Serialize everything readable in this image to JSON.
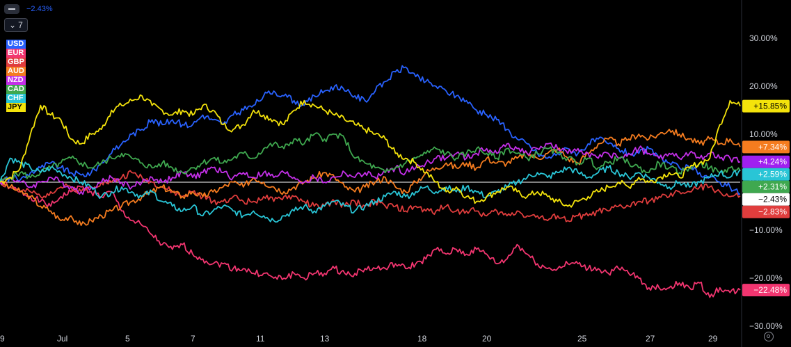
{
  "header": {
    "change_value": "−2.43%",
    "series_count": "7"
  },
  "chart_data": {
    "type": "line",
    "x_tick_labels": [
      "9",
      "Jul",
      "5",
      "7",
      "11",
      "13",
      "18",
      "20",
      "25",
      "27",
      "29"
    ],
    "y_tick_labels": [
      "30.00%",
      "20.00%",
      "10.00%",
      "0.00%",
      "−10.00%",
      "−20.00%",
      "−30.00%"
    ],
    "y_ticks": [
      30,
      20,
      10,
      0,
      -10,
      -20,
      -30
    ],
    "ylim": [
      -30,
      35
    ],
    "grid": false,
    "legend": "top-left",
    "series": [
      {
        "name": "USD",
        "color": "#2962ff",
        "last_label": "−2.43%",
        "badge_bg": "#ffffff",
        "badge_fg": "#000000",
        "values": [
          0,
          1,
          0.5,
          2,
          3,
          4,
          3,
          2,
          1.5,
          2,
          4,
          6,
          8,
          10,
          11,
          13,
          12,
          13,
          12,
          12,
          14,
          13,
          12,
          14,
          15,
          16,
          18,
          19,
          18,
          17,
          16,
          18,
          19,
          20,
          19,
          18,
          17,
          19,
          21,
          23,
          24,
          22,
          21,
          20,
          19,
          18,
          17,
          15,
          14,
          13,
          11,
          9,
          8,
          6,
          5,
          6,
          7,
          6,
          8,
          9,
          8,
          7,
          6,
          6,
          7,
          5,
          4,
          3,
          3,
          2,
          1,
          0,
          -1,
          -2.43
        ]
      },
      {
        "name": "EUR",
        "color": "#f23570",
        "last_label": "−22.48%",
        "badge_bg": "#f23570",
        "badge_fg": "#ffffff",
        "values": [
          0,
          -1,
          -2,
          -3,
          -4,
          -5,
          -3,
          -2,
          -1,
          -2,
          -3,
          -2,
          -6,
          -8,
          -9,
          -11,
          -13,
          -14,
          -13,
          -15,
          -16,
          -17,
          -17,
          -18,
          -18,
          -19,
          -19,
          -20,
          -20,
          -19,
          -20,
          -19,
          -19,
          -18,
          -19,
          -19,
          -18,
          -18,
          -18,
          -17,
          -18,
          -17,
          -16,
          -14,
          -15,
          -14,
          -15,
          -14,
          -15,
          -17,
          -16,
          -13,
          -15,
          -17,
          -18,
          -18,
          -17,
          -17,
          -18,
          -18,
          -19,
          -18,
          -19,
          -20,
          -22,
          -22,
          -22,
          -21,
          -22,
          -21,
          -24,
          -22,
          -23,
          -22.48
        ]
      },
      {
        "name": "GBP",
        "color": "#e03d3d",
        "last_label": "−2.83%",
        "badge_bg": "#e03d3d",
        "badge_fg": "#ffffff",
        "values": [
          0,
          -1,
          -2,
          -2,
          -3,
          -2,
          -1,
          -1,
          -2,
          -1,
          0,
          0,
          1,
          2,
          1,
          0,
          -1,
          -2,
          -3,
          -2,
          -3,
          -4,
          -4,
          -3,
          -4,
          -4,
          -3,
          -4,
          -3,
          -3,
          -4,
          -5,
          -5,
          -4,
          -5,
          -4,
          -5,
          -4,
          -5,
          -5,
          -6,
          -5,
          -6,
          -6,
          -5,
          -6,
          -6,
          -6,
          -7,
          -6,
          -7,
          -6,
          -7,
          -7,
          -8,
          -7,
          -8,
          -7,
          -7,
          -6,
          -6,
          -5,
          -5,
          -4,
          -4,
          -3,
          -3,
          -2,
          -2,
          -1,
          -1,
          -2,
          -3,
          -2.83
        ]
      },
      {
        "name": "AUD",
        "color": "#f57c1f",
        "last_label": "+7.34%",
        "badge_bg": "#f57c1f",
        "badge_fg": "#ffffff",
        "values": [
          0,
          -1,
          -2,
          -3,
          -5,
          -6,
          -8,
          -7,
          -9,
          -8,
          -7,
          -6,
          -5,
          -4,
          -3,
          -2,
          -1,
          -2,
          -3,
          -2,
          -3,
          -2,
          -1,
          0,
          -1,
          1,
          0,
          -1,
          -2,
          -1,
          0,
          1,
          2,
          1,
          -1,
          -2,
          -1,
          0,
          1,
          -1,
          -2,
          0,
          2,
          3,
          4,
          3,
          4,
          3,
          5,
          4,
          4,
          5,
          6,
          5,
          6,
          7,
          5,
          4,
          6,
          8,
          9,
          8,
          9,
          10,
          9,
          10,
          11,
          10,
          9,
          8,
          9,
          8,
          9,
          7.34
        ]
      },
      {
        "name": "NZD",
        "color": "#c42fe8",
        "last_label": "+4.24%",
        "badge_bg": "#a020f0",
        "badge_fg": "#ffffff",
        "values": [
          0,
          1,
          0,
          -1,
          0,
          1,
          0,
          -1,
          -2,
          -1,
          0,
          1,
          0,
          -1,
          0,
          1,
          0,
          1,
          2,
          1,
          2,
          3,
          2,
          1,
          2,
          1,
          2,
          1,
          2,
          1,
          0,
          1,
          0,
          1,
          2,
          1,
          2,
          1,
          2,
          3,
          2,
          3,
          4,
          5,
          5,
          6,
          5,
          6,
          7,
          6,
          8,
          7,
          6,
          7,
          8,
          7,
          6,
          7,
          6,
          5,
          6,
          5,
          6,
          7,
          6,
          5,
          6,
          5,
          6,
          5,
          6,
          5,
          5,
          4.24
        ]
      },
      {
        "name": "CAD",
        "color": "#3fa84f",
        "last_label": "+2.31%",
        "badge_bg": "#3fa84f",
        "badge_fg": "#ffffff",
        "values": [
          0,
          1,
          2,
          1,
          2,
          3,
          4,
          5,
          4,
          3,
          4,
          5,
          6,
          5,
          4,
          3,
          4,
          3,
          2,
          3,
          4,
          5,
          4,
          5,
          6,
          5,
          7,
          8,
          7,
          9,
          8,
          10,
          9,
          10,
          9,
          5,
          4,
          3,
          2,
          3,
          4,
          5,
          6,
          7,
          6,
          5,
          6,
          7,
          6,
          5,
          7,
          6,
          5,
          6,
          7,
          6,
          5,
          4,
          5,
          3,
          4,
          5,
          4,
          3,
          2,
          4,
          3,
          2,
          3,
          4,
          3,
          2,
          3,
          2.31
        ]
      },
      {
        "name": "CHF",
        "color": "#29c5d6",
        "last_label": "+2.59%",
        "badge_bg": "#29c5d6",
        "badge_fg": "#ffffff",
        "values": [
          0,
          5,
          4,
          3,
          2,
          3,
          2,
          1,
          0,
          -1,
          -3,
          -2,
          -1,
          -2,
          -3,
          -2,
          -4,
          -5,
          -6,
          -5,
          -7,
          -6,
          -5,
          -6,
          -7,
          -6,
          -7,
          -8,
          -7,
          -6,
          -5,
          -6,
          -5,
          -4,
          -5,
          -6,
          -5,
          -4,
          -3,
          -2,
          -3,
          -2,
          -1,
          -2,
          -1,
          -2,
          -1,
          -2,
          -3,
          -2,
          -1,
          0,
          1,
          2,
          1,
          2,
          3,
          2,
          1,
          2,
          3,
          2,
          1,
          2,
          1,
          0,
          -1,
          0,
          -1,
          0,
          1,
          2,
          1,
          2.59
        ]
      },
      {
        "name": "JPY",
        "color": "#f4e30b",
        "last_label": "+15.85%",
        "badge_bg": "#f4e30b",
        "badge_fg": "#000000",
        "values": [
          0,
          1,
          3,
          10,
          16,
          14,
          13,
          9,
          8,
          10,
          11,
          15,
          16,
          17,
          18,
          16,
          15,
          14,
          15,
          14,
          16,
          15,
          12,
          11,
          12,
          15,
          14,
          13,
          12,
          15,
          17,
          16,
          15,
          14,
          13,
          12,
          11,
          10,
          9,
          6,
          5,
          4,
          2,
          0,
          -2,
          -1,
          -3,
          -4,
          -3,
          -2,
          -1,
          -2,
          -3,
          -2,
          -3,
          -4,
          -5,
          -4,
          -3,
          -2,
          -1,
          0,
          -1,
          1,
          0,
          1,
          2,
          1,
          3,
          4,
          5,
          12,
          17,
          15.85
        ]
      }
    ]
  }
}
